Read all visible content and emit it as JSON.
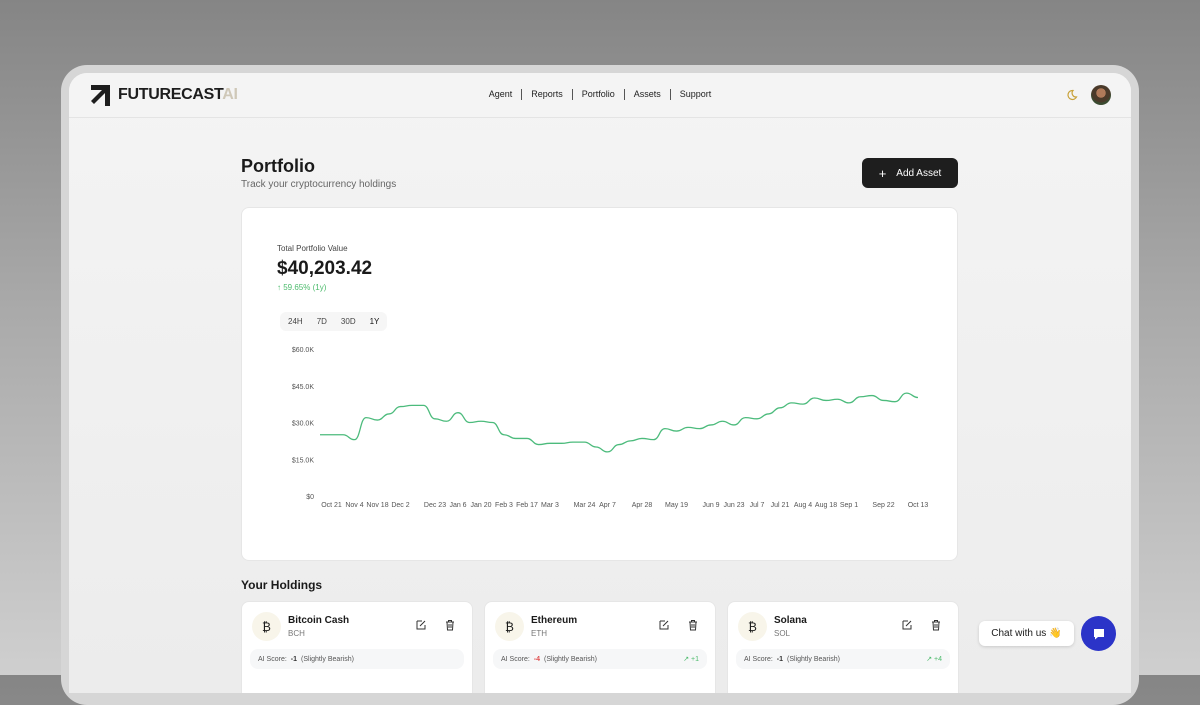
{
  "header": {
    "logo_main": "FUTURECAST",
    "logo_accent": "AI",
    "nav": [
      "Agent",
      "Reports",
      "Portfolio",
      "Assets",
      "Support"
    ]
  },
  "page": {
    "title": "Portfolio",
    "subtitle": "Track your cryptocurrency holdings",
    "add_label": "Add Asset"
  },
  "summary": {
    "label": "Total Portfolio Value",
    "value": "$40,203.42",
    "change": "↑ 59.65% (1y)",
    "ranges": [
      "24H",
      "7D",
      "30D",
      "1Y"
    ],
    "active_range": "1Y"
  },
  "colors": {
    "line": "#4cbb7c",
    "positive": "#4cbb6c",
    "negative": "#e05050",
    "accent": "#2b34c8"
  },
  "chart_data": {
    "type": "line",
    "x": [
      "Oct 14",
      "Oct 21",
      "Oct 28",
      "Nov 4",
      "Nov 11",
      "Nov 18",
      "Nov 25",
      "Dec 2",
      "Dec 9",
      "Dec 16",
      "Dec 23",
      "Dec 30",
      "Jan 6",
      "Jan 13",
      "Jan 20",
      "Jan 27",
      "Feb 3",
      "Feb 10",
      "Feb 17",
      "Feb 24",
      "Mar 3",
      "Mar 10",
      "Mar 17",
      "Mar 24",
      "Mar 31",
      "Apr 7",
      "Apr 14",
      "Apr 21",
      "Apr 28",
      "May 5",
      "May 12",
      "May 19",
      "May 26",
      "Jun 2",
      "Jun 9",
      "Jun 16",
      "Jun 23",
      "Jun 30",
      "Jul 7",
      "Jul 14",
      "Jul 21",
      "Jul 28",
      "Aug 4",
      "Aug 11",
      "Aug 18",
      "Aug 25",
      "Sep 1",
      "Sep 8",
      "Sep 15",
      "Sep 22",
      "Sep 29",
      "Oct 6",
      "Oct 13"
    ],
    "values": [
      25000,
      25000,
      25000,
      23000,
      32000,
      31000,
      33500,
      36500,
      37000,
      37000,
      31500,
      30500,
      34000,
      30000,
      30500,
      30000,
      25000,
      23500,
      23500,
      21000,
      21500,
      21500,
      22000,
      22000,
      20000,
      18000,
      21000,
      22500,
      23500,
      23000,
      27500,
      26500,
      28000,
      27500,
      29000,
      30500,
      29000,
      32000,
      31500,
      33500,
      36000,
      38000,
      37500,
      40000,
      39000,
      39500,
      38000,
      40500,
      41000,
      39000,
      38500,
      42000,
      40203
    ],
    "x_ticks": [
      "Oct 21",
      "Nov 4",
      "Nov 18",
      "Dec 2",
      "Dec 23",
      "Jan 6",
      "Jan 20",
      "Feb 3",
      "Feb 17",
      "Mar 3",
      "Mar 24",
      "Apr 7",
      "Apr 28",
      "May 19",
      "Jun 9",
      "Jun 23",
      "Jul 7",
      "Jul 21",
      "Aug 4",
      "Aug 18",
      "Sep 1",
      "Sep 22",
      "Oct 13"
    ],
    "y_ticks": [
      "$0",
      "$15.0K",
      "$30.0K",
      "$45.0K",
      "$60.0K"
    ],
    "ylim": [
      0,
      60000
    ],
    "grid": false
  },
  "holdings": {
    "title": "Your Holdings",
    "items": [
      {
        "name": "Bitcoin Cash",
        "symbol": "BCH",
        "coin_glyph": "₿",
        "score_label": "AI Score:",
        "score": "-1",
        "sentiment": "(Slightly Bearish)",
        "trend": "",
        "negative": false
      },
      {
        "name": "Ethereum",
        "symbol": "ETH",
        "coin_glyph": "₿",
        "score_label": "AI Score:",
        "score": "-4",
        "sentiment": "(Slightly Bearish)",
        "trend": "+1",
        "negative": true
      },
      {
        "name": "Solana",
        "symbol": "SOL",
        "coin_glyph": "₿",
        "score_label": "AI Score:",
        "score": "-1",
        "sentiment": "(Slightly Bearish)",
        "trend": "+4",
        "negative": false
      }
    ]
  },
  "chat": {
    "label": "Chat with us",
    "emoji": "👋"
  }
}
